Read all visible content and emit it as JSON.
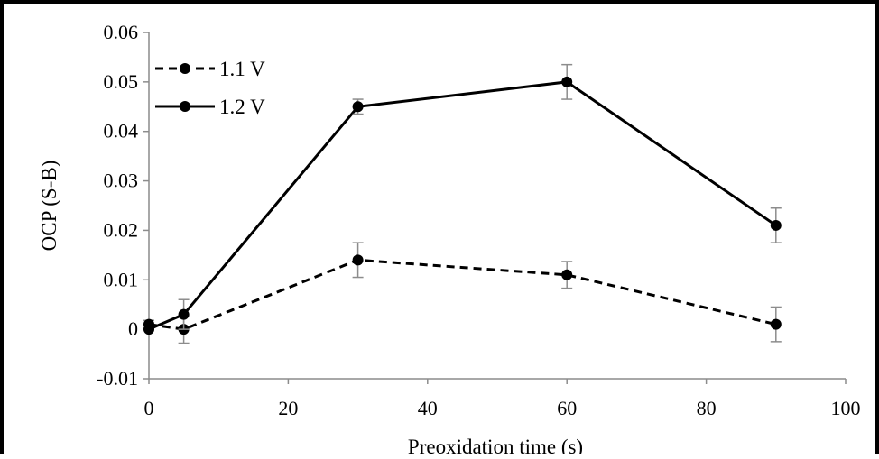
{
  "chart_data": {
    "type": "line",
    "title": "",
    "xlabel": "Preoxidation time (s)",
    "ylabel": "OCP (S-B)",
    "xlim": [
      0,
      100
    ],
    "ylim": [
      -0.01,
      0.06
    ],
    "xticks": [
      0,
      20,
      40,
      60,
      80,
      100
    ],
    "xtick_labels": [
      "0",
      "20",
      "40",
      "60",
      "80",
      "100"
    ],
    "yticks": [
      -0.01,
      0,
      0.01,
      0.02,
      0.03,
      0.04,
      0.05,
      0.06
    ],
    "ytick_labels": [
      "-0.01",
      "0",
      "0.01",
      "0.02",
      "0.03",
      "0.04",
      "0.05",
      "0.06"
    ],
    "grid": false,
    "legend_position": "top-left",
    "series": [
      {
        "name": "1.1 V",
        "line_style": "dashed",
        "color": "#000000",
        "x": [
          0,
          5,
          30,
          60,
          90
        ],
        "y": [
          0.001,
          0.0,
          0.014,
          0.011,
          0.001
        ],
        "error": [
          0.0008,
          0.0028,
          0.0035,
          0.0027,
          0.0035
        ]
      },
      {
        "name": "1.2 V",
        "line_style": "solid",
        "color": "#000000",
        "x": [
          0,
          5,
          30,
          60,
          90
        ],
        "y": [
          0.0,
          0.003,
          0.045,
          0.05,
          0.021
        ],
        "error": [
          0.0,
          0.003,
          0.0015,
          0.0035,
          0.0035
        ]
      }
    ]
  }
}
